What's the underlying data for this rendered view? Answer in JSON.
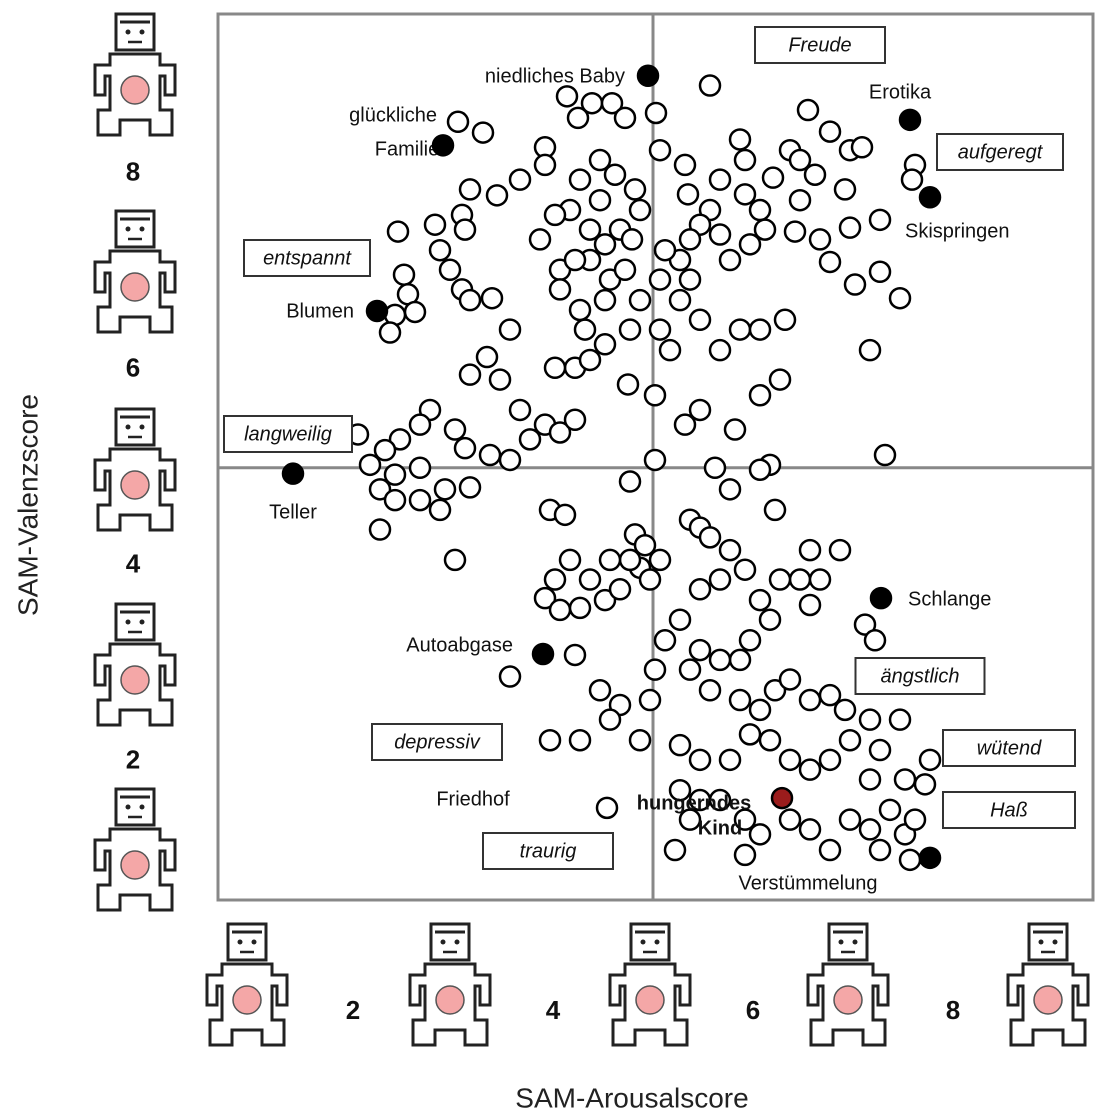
{
  "chart_data": {
    "type": "scatter",
    "x_label": "SAM-Arousalscore",
    "y_label": "SAM-Valenzscore",
    "xlim": [
      0.65,
      9.4
    ],
    "ylim": [
      0.59,
      9.63
    ],
    "xticks": [
      2,
      4,
      6,
      8
    ],
    "yticks": [
      2,
      4,
      6,
      8
    ],
    "reference_lines": {
      "x": 5,
      "y": 5
    },
    "color": "#ffffff",
    "x": [
      3.05,
      3.3,
      4.14,
      4.39,
      4.59,
      4.25,
      4.72,
      5.03,
      3.92,
      3.92,
      3.67,
      3.44,
      3.17,
      3.09,
      3.12,
      2.82,
      2.45,
      2.87,
      2.97,
      3.09,
      3.17,
      3.39,
      2.51,
      2.55,
      2.42,
      2.62,
      2.37,
      3.57,
      3.34,
      3.17,
      3.47,
      3.67,
      3.92,
      4.07,
      4.22,
      4.22,
      4.02,
      4.37,
      4.52,
      4.32,
      4.27,
      4.52,
      4.57,
      4.37,
      4.52,
      4.67,
      4.37,
      4.17,
      4.02,
      3.87,
      4.07,
      4.22,
      4.07,
      4.47,
      4.62,
      4.82,
      4.87,
      4.79,
      4.72,
      4.87,
      4.77,
      4.75,
      5.02,
      4.47,
      4.27,
      2.77,
      2.67,
      2.47,
      2.32,
      2.17,
      3.02,
      3.12,
      3.37,
      3.57,
      3.77,
      2.05,
      2.42,
      2.67,
      2.27,
      2.42,
      2.67,
      2.92,
      3.17,
      2.87,
      2.27,
      3.02,
      3.97,
      4.12,
      4.77,
      5.57,
      5.07,
      5.32,
      5.35,
      5.57,
      5.67,
      5.87,
      5.92,
      5.92,
      6.07,
      6.2,
      6.37,
      6.55,
      6.77,
      6.97,
      7.09,
      6.92,
      6.62,
      6.47,
      6.42,
      6.12,
      5.97,
      5.77,
      5.67,
      5.47,
      5.37,
      5.27,
      5.37,
      5.27,
      5.47,
      5.67,
      5.87,
      6.07,
      6.32,
      6.77,
      7.02,
      7.27,
      7.47,
      7.17,
      6.27,
      6.07,
      5.32,
      5.82,
      5.47,
      5.62,
      6.17,
      7.32,
      6.67,
      6.97,
      7.27,
      7.62,
      7.59,
      6.47,
      5.02,
      5.17,
      5.07,
      5.07,
      5.12,
      4.82,
      4.92,
      4.87,
      4.77,
      4.57,
      4.37,
      4.17,
      4.02,
      3.92,
      4.07,
      4.27,
      4.52,
      4.67,
      4.97,
      5.07,
      4.22,
      3.57,
      3.97,
      4.27,
      4.47,
      4.67,
      4.57,
      4.87,
      4.97,
      5.02,
      5.12,
      5.27,
      5.37,
      5.47,
      5.57,
      5.77,
      6.07,
      6.22,
      6.57,
      6.87,
      6.47,
      6.27,
      6.07,
      6.17,
      5.97,
      5.87,
      5.67,
      5.47,
      5.37,
      5.57,
      5.87,
      6.07,
      6.22,
      6.37,
      6.57,
      6.77,
      6.92,
      7.17,
      7.27,
      6.97,
      6.77,
      6.57,
      6.37,
      6.17,
      5.97,
      5.77,
      5.47,
      5.27,
      5.27,
      5.47,
      5.67,
      5.92,
      6.07,
      6.37,
      6.57,
      6.77,
      6.97,
      7.17,
      7.37,
      7.52,
      7.47,
      7.17,
      7.27,
      7.52,
      7.62,
      7.72,
      5.92,
      5.22,
      5.37,
      5.67,
      5.92,
      5.77,
      5.47,
      7.12,
      7.22,
      6.57,
      6.67,
      7.77,
      7.57
    ],
    "y": [
      8.53,
      8.42,
      8.79,
      8.72,
      8.72,
      8.57,
      8.57,
      8.62,
      8.27,
      8.09,
      7.94,
      7.78,
      7.84,
      7.58,
      7.43,
      7.48,
      7.41,
      7.22,
      7.02,
      6.82,
      6.71,
      6.73,
      6.97,
      6.77,
      6.56,
      6.59,
      6.38,
      6.41,
      6.13,
      5.95,
      5.9,
      5.59,
      5.44,
      5.36,
      5.49,
      6.02,
      6.02,
      6.1,
      6.26,
      6.41,
      6.61,
      6.71,
      6.92,
      7.12,
      7.28,
      7.43,
      7.43,
      7.63,
      7.58,
      7.33,
      7.02,
      7.12,
      6.82,
      7.73,
      7.99,
      7.84,
      7.63,
      7.33,
      7.02,
      6.71,
      6.41,
      5.85,
      5.74,
      8.14,
      7.94,
      5.59,
      5.44,
      5.29,
      5.18,
      5.03,
      5.39,
      5.2,
      5.13,
      5.08,
      5.29,
      5.34,
      4.93,
      5.0,
      4.78,
      4.67,
      4.67,
      4.78,
      4.8,
      4.57,
      4.37,
      4.06,
      4.57,
      4.52,
      4.86,
      8.9,
      8.24,
      8.09,
      7.79,
      7.63,
      7.94,
      8.35,
      8.14,
      7.79,
      7.63,
      7.96,
      8.24,
      8.65,
      8.43,
      8.24,
      8.27,
      7.84,
      7.99,
      7.73,
      7.41,
      7.43,
      7.28,
      7.12,
      7.38,
      7.48,
      7.33,
      7.12,
      6.92,
      6.71,
      6.51,
      6.2,
      6.41,
      6.41,
      6.51,
      7.1,
      6.87,
      7.0,
      6.73,
      6.2,
      5.9,
      5.74,
      5.44,
      5.39,
      5.59,
      5.0,
      5.03,
      5.13,
      7.33,
      7.45,
      7.53,
      8.09,
      7.94,
      8.14,
      5.08,
      6.2,
      6.41,
      6.92,
      7.22,
      4.32,
      4.21,
      3.98,
      4.06,
      4.06,
      3.86,
      4.06,
      3.86,
      3.67,
      3.55,
      3.57,
      3.65,
      3.76,
      3.86,
      4.06,
      3.09,
      2.87,
      2.22,
      2.22,
      2.73,
      2.58,
      2.43,
      2.22,
      2.63,
      2.94,
      3.24,
      3.45,
      4.47,
      4.39,
      4.29,
      4.78,
      4.98,
      4.57,
      4.16,
      4.16,
      3.86,
      3.86,
      3.65,
      3.45,
      3.24,
      3.04,
      3.04,
      3.14,
      2.94,
      2.73,
      2.63,
      2.53,
      2.73,
      2.84,
      2.63,
      2.68,
      2.53,
      2.43,
      2.12,
      2.22,
      2.02,
      1.92,
      2.02,
      2.22,
      2.28,
      2.02,
      2.02,
      2.17,
      1.71,
      1.61,
      1.61,
      1.41,
      1.26,
      1.41,
      1.31,
      1.1,
      1.41,
      1.31,
      1.51,
      1.82,
      2.43,
      1.82,
      1.1,
      1.26,
      1.41,
      1.77,
      1.05,
      1.1,
      1.41,
      3.86,
      3.96,
      4.16,
      3.76,
      3.4,
      3.24,
      3.6,
      3.86,
      2.02,
      1.0
    ],
    "highlighted_points": [
      {
        "label": [
          "niedliches Baby"
        ],
        "x": 4.95,
        "y": 9.0,
        "color": "#000000"
      },
      {
        "label": [
          "glückliche",
          "Familie"
        ],
        "x": 2.9,
        "y": 8.29,
        "color": "#000000"
      },
      {
        "label": [
          "Erotika"
        ],
        "x": 7.57,
        "y": 8.55,
        "color": "#000000"
      },
      {
        "label": [
          "Skispringen"
        ],
        "x": 7.77,
        "y": 7.76,
        "color": "#000000"
      },
      {
        "label": [
          "Blumen"
        ],
        "x": 2.24,
        "y": 6.6,
        "color": "#000000"
      },
      {
        "label": [
          "Teller"
        ],
        "x": 1.4,
        "y": 4.94,
        "color": "#000000"
      },
      {
        "label": [
          "Schlange"
        ],
        "x": 7.28,
        "y": 3.67,
        "color": "#000000"
      },
      {
        "label": [
          "Autoabgase"
        ],
        "x": 3.9,
        "y": 3.1,
        "color": "#000000"
      },
      {
        "label": [
          "hungerndes",
          "Kind"
        ],
        "x": 6.29,
        "y": 1.63,
        "color": "#9b1c1c"
      },
      {
        "label": [
          "Verstümmelung"
        ],
        "x": 7.77,
        "y": 1.02,
        "color": "#000000"
      },
      {
        "label": [
          "Friedhof"
        ],
        "x": 4.54,
        "y": 1.53,
        "color": "#ffffff"
      }
    ],
    "emotion_labels": [
      "Freude",
      "aufgeregt",
      "entspannt",
      "langweilig",
      "ängstlich",
      "wütend",
      "Haß",
      "depressiv",
      "traurig"
    ]
  }
}
